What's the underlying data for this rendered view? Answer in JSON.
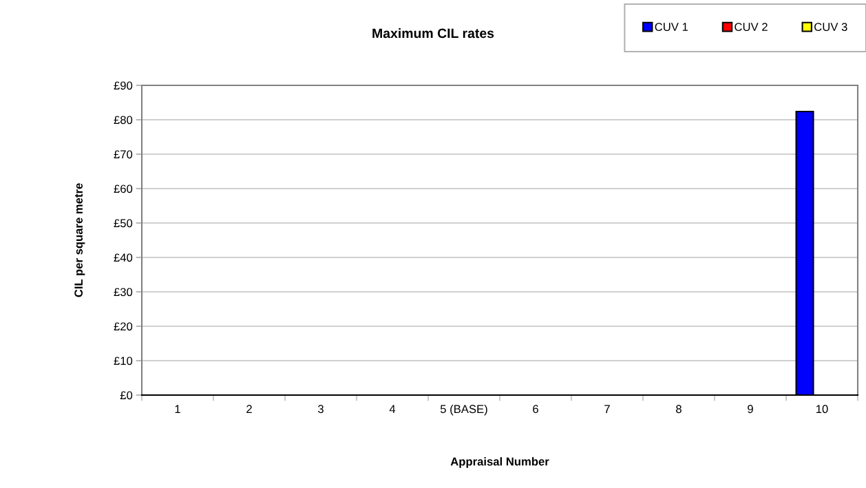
{
  "chart_data": {
    "type": "bar",
    "title": "Maximum CIL rates",
    "xlabel": "Appraisal Number",
    "ylabel": "CIL per square metre",
    "categories": [
      "1",
      "2",
      "3",
      "4",
      "5 (BASE)",
      "6",
      "7",
      "8",
      "9",
      "10"
    ],
    "series": [
      {
        "name": "CUV 1",
        "color": "#0000ff",
        "values": [
          0,
          0,
          0,
          0,
          0,
          0,
          0,
          0,
          0,
          82.4
        ]
      },
      {
        "name": "CUV 2",
        "color": "#ff0000",
        "values": [
          0,
          0,
          0,
          0,
          0,
          0,
          0,
          0,
          0,
          0
        ]
      },
      {
        "name": "CUV 3",
        "color": "#ffff00",
        "values": [
          0,
          0,
          0,
          0,
          0,
          0,
          0,
          0,
          0,
          0
        ]
      }
    ],
    "ylim": [
      0,
      90
    ],
    "yticks": [
      {
        "value": 0,
        "label": "£0"
      },
      {
        "value": 10,
        "label": "£10"
      },
      {
        "value": 20,
        "label": "£20"
      },
      {
        "value": 30,
        "label": "£30"
      },
      {
        "value": 40,
        "label": "£40"
      },
      {
        "value": 50,
        "label": "£50"
      },
      {
        "value": 60,
        "label": "£60"
      },
      {
        "value": 70,
        "label": "£70"
      },
      {
        "value": 80,
        "label": "£80"
      },
      {
        "value": 90,
        "label": "£90"
      }
    ],
    "grid": "y",
    "legend": "top right"
  }
}
